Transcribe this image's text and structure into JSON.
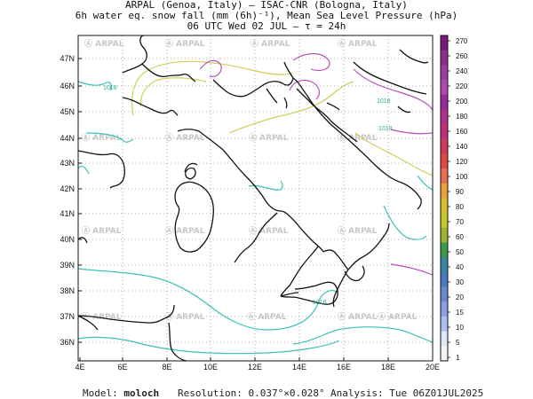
{
  "header": {
    "line1": "ARPAL (Genoa, Italy)  –  ISAC-CNR (Bologna, Italy)",
    "line2": "6h water eq. snow fall (mm (6h)⁻¹), Mean Sea Level Pressure (hPa)",
    "line3": "06 UTC Wed 02 JUL  –  τ = 24h"
  },
  "map": {
    "lon_ticks": [
      "4E",
      "6E",
      "8E",
      "10E",
      "12E",
      "14E",
      "16E",
      "18E",
      "20E"
    ],
    "lat_ticks": [
      "47N",
      "46N",
      "45N",
      "44N",
      "43N",
      "42N",
      "41N",
      "40N",
      "39N",
      "38N",
      "37N",
      "36N"
    ],
    "watermark": "ARPAL",
    "isobar_labels": [
      "1016",
      "1018",
      "1018",
      "1016"
    ]
  },
  "colorbar": {
    "labels": [
      "270",
      "260",
      "240",
      "220",
      "200",
      "180",
      "160",
      "140",
      "120",
      "100",
      "90",
      "80",
      "70",
      "60",
      "50",
      "40",
      "30",
      "20",
      "15",
      "10",
      "5",
      "1"
    ],
    "colors": [
      "#7a1a7a",
      "#8c2e8c",
      "#a03ca0",
      "#b04ab0",
      "#9a2a9a",
      "#b0308a",
      "#c0307a",
      "#d03a5a",
      "#e04848",
      "#e87050",
      "#e8a038",
      "#d8c030",
      "#c8c828",
      "#a0b030",
      "#3a9a4a",
      "#3a86a0",
      "#4a7ac0",
      "#6a8ad0",
      "#8aa0e0",
      "#aac0f0",
      "#dde8f8",
      "#f4f4f4"
    ]
  },
  "footer": {
    "model_label": "Model:",
    "model_value": "moloch",
    "resolution": "Resolution: 0.037°×0.028°",
    "analysis": "Analysis: Tue 06Z01JUL2025"
  }
}
